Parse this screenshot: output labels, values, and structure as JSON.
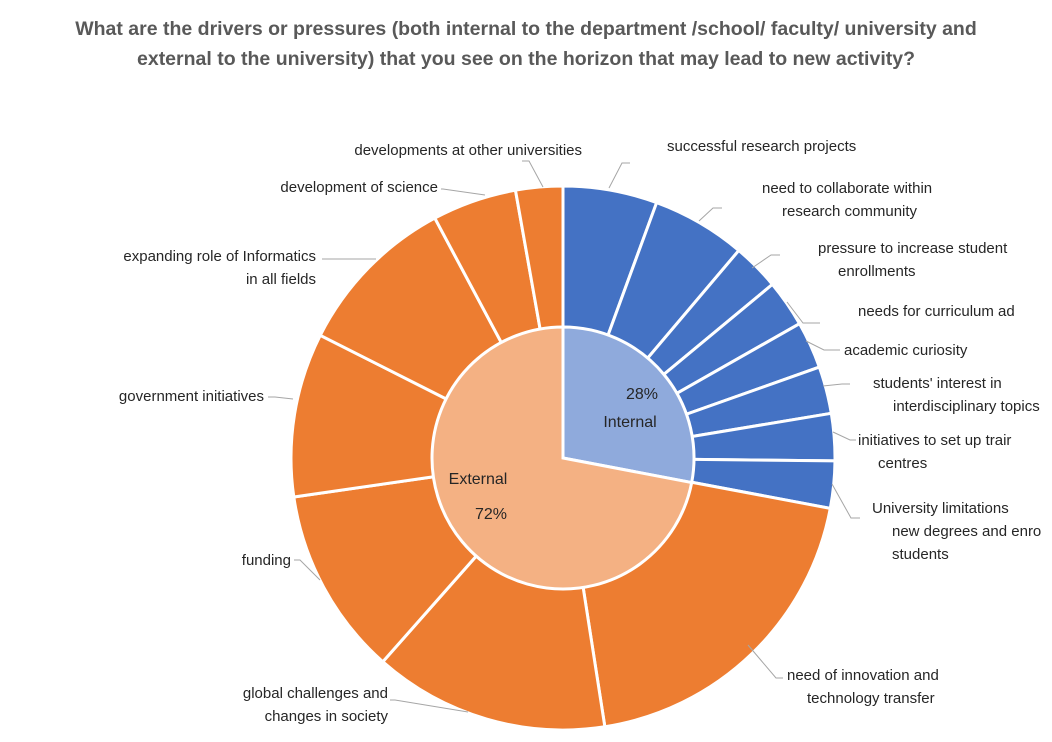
{
  "chart_data": {
    "type": "pie",
    "title_lines": [
      "What are the drivers or pressures (both internal to the department /school/ faculty/ university and",
      "external to the university) that you see on the horizon that may lead to new activity?"
    ],
    "inner_ring": [
      {
        "name": "Internal",
        "value": 28,
        "label": "28%",
        "color": "#8faadc"
      },
      {
        "name": "External",
        "value": 72,
        "label": "72%",
        "color": "#f4b183"
      }
    ],
    "outer_ring": [
      {
        "group": "Internal",
        "value": 5.8,
        "label_lines": [
          "successful research projects"
        ],
        "color": "#4472c4"
      },
      {
        "group": "Internal",
        "value": 5.8,
        "label_lines": [
          "need to collaborate within",
          "research community"
        ],
        "color": "#4472c4"
      },
      {
        "group": "Internal",
        "value": 2.9,
        "label_lines": [
          "pressure to increase student",
          "enrollments"
        ],
        "color": "#4472c4"
      },
      {
        "group": "Internal",
        "value": 2.9,
        "label_lines": [
          "needs for curriculum ad"
        ],
        "color": "#4472c4"
      },
      {
        "group": "Internal",
        "value": 2.9,
        "label_lines": [
          "academic curiosity"
        ],
        "color": "#4472c4"
      },
      {
        "group": "Internal",
        "value": 2.9,
        "label_lines": [
          "students' interest in",
          "interdisciplinary topics"
        ],
        "color": "#4472c4"
      },
      {
        "group": "Internal",
        "value": 2.9,
        "label_lines": [
          "initiatives to set up trair",
          "centres"
        ],
        "color": "#4472c4"
      },
      {
        "group": "Internal",
        "value": 2.9,
        "label_lines": [
          "University limitations",
          "new degrees and enro",
          "students"
        ],
        "color": "#4472c4"
      },
      {
        "group": "External",
        "value": 20.3,
        "label_lines": [
          "need of innovation and",
          "technology transfer"
        ],
        "color": "#ed7d31"
      },
      {
        "group": "External",
        "value": 14.5,
        "label_lines": [
          "global challenges and",
          "changes in society"
        ],
        "color": "#ed7d31"
      },
      {
        "group": "External",
        "value": 11.6,
        "label_lines": [
          "funding"
        ],
        "color": "#ed7d31"
      },
      {
        "group": "External",
        "value": 10.1,
        "label_lines": [
          "government initiatives"
        ],
        "color": "#ed7d31"
      },
      {
        "group": "External",
        "value": 10.1,
        "label_lines": [
          "expanding role of Informatics",
          "in all fields"
        ],
        "color": "#ed7d31"
      },
      {
        "group": "External",
        "value": 5.2,
        "label_lines": [
          "development of science"
        ],
        "color": "#ed7d31"
      },
      {
        "group": "External",
        "value": 2.9,
        "label_lines": [
          "developments at other universities"
        ],
        "color": "#ed7d31"
      }
    ]
  }
}
